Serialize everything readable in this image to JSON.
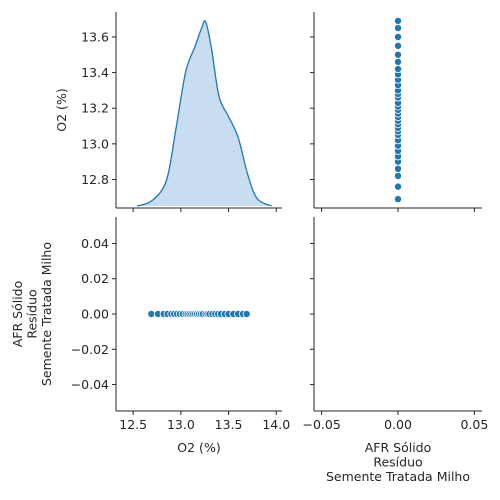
{
  "chart_data": {
    "type": "scatter",
    "kind": "pairplot",
    "variables": [
      "O2 (%)",
      "AFR Sólido\nResíduo\nSemente Tratada Milho"
    ],
    "color": "#1f77b4",
    "kde_fill_color": "#c6dbef",
    "o2_ticks": [
      12.8,
      13.0,
      13.2,
      13.4,
      13.6
    ],
    "o2_ticks_x": [
      12.5,
      13.0,
      13.5,
      14.0
    ],
    "afr_ticks": [
      -0.04,
      -0.02,
      0.0,
      0.02,
      0.04
    ],
    "afr_ticks_x": [
      -0.05,
      0.0,
      0.05
    ],
    "o2_ylim": [
      12.64,
      13.74
    ],
    "o2_xlim": [
      12.32,
      14.06
    ],
    "afr_ylim": [
      -0.055,
      0.055
    ],
    "afr_xlim": [
      -0.055,
      0.055
    ],
    "o2_values": [
      12.69,
      12.76,
      12.82,
      12.86,
      12.9,
      12.93,
      12.96,
      12.99,
      13.02,
      13.05,
      13.07,
      13.09,
      13.11,
      13.13,
      13.15,
      13.17,
      13.19,
      13.21,
      13.23,
      13.26,
      13.28,
      13.3,
      13.33,
      13.36,
      13.39,
      13.42,
      13.46,
      13.5,
      13.55,
      13.6,
      13.65,
      13.69
    ],
    "afr_values": [
      0,
      0,
      0,
      0,
      0,
      0,
      0,
      0,
      0,
      0,
      0,
      0,
      0,
      0,
      0,
      0,
      0,
      0,
      0,
      0,
      0,
      0,
      0,
      0,
      0,
      0,
      0,
      0,
      0,
      0,
      0,
      0
    ],
    "kde": {
      "x": [
        12.54,
        12.7,
        12.85,
        12.95,
        13.05,
        13.15,
        13.22,
        13.26,
        13.32,
        13.4,
        13.5,
        13.6,
        13.7,
        13.8,
        13.95
      ],
      "density": [
        0.0,
        0.03,
        0.14,
        0.42,
        0.72,
        0.86,
        0.96,
        0.99,
        0.85,
        0.59,
        0.48,
        0.37,
        0.17,
        0.04,
        0.0
      ]
    }
  }
}
